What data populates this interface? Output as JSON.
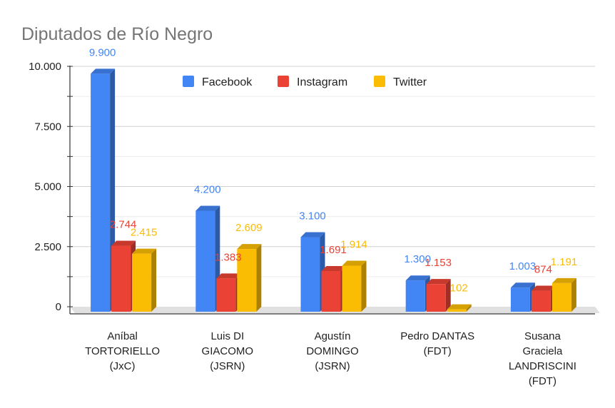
{
  "chart_data": {
    "type": "bar",
    "title": "Diputados de Río Negro",
    "categories": [
      [
        "Aníbal",
        "TORTORIELLO",
        "(JxC)"
      ],
      [
        "Luis DI",
        "GIACOMO",
        "(JSRN)"
      ],
      [
        "Agustín",
        "DOMINGO",
        "(JSRN)"
      ],
      [
        "Pedro DANTAS",
        "(FDT)"
      ],
      [
        "Susana",
        "Graciela",
        "LANDRISCINI",
        "(FDT)"
      ]
    ],
    "series": [
      {
        "name": "Facebook",
        "color": "#4285f4",
        "values": [
          9900,
          4200,
          3100,
          1300,
          1003
        ],
        "labels": [
          "9.900",
          "4.200",
          "3.100",
          "1.300",
          "1.003"
        ]
      },
      {
        "name": "Instagram",
        "color": "#ea4335",
        "values": [
          2744,
          1383,
          1691,
          1153,
          874
        ],
        "labels": [
          "2.744",
          "1.383",
          "1.691",
          "1.153",
          "874"
        ]
      },
      {
        "name": "Twitter",
        "color": "#fbbc04",
        "values": [
          2415,
          2609,
          1914,
          102,
          1191
        ],
        "labels": [
          "2.415",
          "2.609",
          "1.914",
          "102",
          "1.191"
        ]
      }
    ],
    "yticks": [
      "0",
      "2.500",
      "5.000",
      "7.500",
      "10.000"
    ],
    "ytick_values": [
      0,
      2500,
      5000,
      7500,
      10000
    ],
    "ylim": [
      0,
      10000
    ],
    "legend_position": "top",
    "grid": true,
    "style": "3d"
  }
}
